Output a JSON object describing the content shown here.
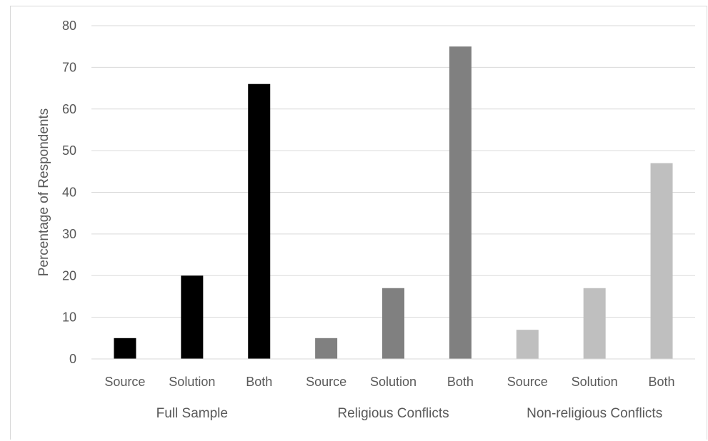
{
  "chart_data": {
    "type": "bar",
    "title": "",
    "ylabel": "Percentage of Respondents",
    "xlabel": "",
    "ylim": [
      0,
      80
    ],
    "yticks": [
      0,
      10,
      20,
      30,
      40,
      50,
      60,
      70,
      80
    ],
    "grid": true,
    "legend": "none",
    "groups": [
      {
        "name": "Full Sample",
        "color": "#000000",
        "categories": [
          "Source",
          "Solution",
          "Both"
        ],
        "values": [
          5,
          20,
          66
        ]
      },
      {
        "name": "Religious Conflicts",
        "color": "#808080",
        "categories": [
          "Source",
          "Solution",
          "Both"
        ],
        "values": [
          5,
          17,
          75
        ]
      },
      {
        "name": "Non-religious Conflicts",
        "color": "#bfbfbf",
        "categories": [
          "Source",
          "Solution",
          "Both"
        ],
        "values": [
          7,
          17,
          47
        ]
      }
    ]
  }
}
